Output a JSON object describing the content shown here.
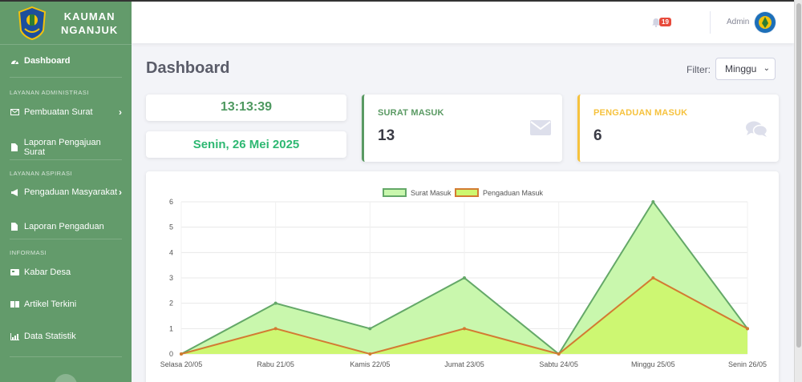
{
  "brand": {
    "line1": "KAUMAN",
    "line2": "NGANJUK"
  },
  "sidebar": {
    "dashboard": "Dashboard",
    "section_admin": "LAYANAN ADMINISTRASI",
    "pembuatan_surat": "Pembuatan Surat",
    "laporan_pengajuan": "Laporan Pengajuan Surat",
    "section_aspirasi": "LAYANAN ASPIRASI",
    "pengaduan_masyarakat": "Pengaduan Masyarakat",
    "laporan_pengaduan": "Laporan Pengaduan",
    "section_informasi": "INFORMASI",
    "kabar_desa": "Kabar Desa",
    "artikel_terkini": "Artikel Terkini",
    "data_statistik": "Data Statistik"
  },
  "topbar": {
    "notif_count": "19",
    "user_name": "Admin"
  },
  "page": {
    "title": "Dashboard",
    "filter_label": "Filter:",
    "filter_value": "Minggu"
  },
  "clock": {
    "time": "13:13:39",
    "date": "Senin, 26 Mei 2025"
  },
  "stats": {
    "surat_label": "SURAT MASUK",
    "surat_value": "13",
    "pengaduan_label": "PENGADUAN MASUK",
    "pengaduan_value": "6"
  },
  "colors": {
    "sidebar": "#639b6b",
    "surat_line": "#64a868",
    "surat_fill": "#c9f7ad",
    "pengaduan_line": "#d37b32",
    "pengaduan_fill": "#cdf76f"
  },
  "chart_data": {
    "type": "area",
    "categories": [
      "Selasa 20/05",
      "Rabu 21/05",
      "Kamis 22/05",
      "Jumat 23/05",
      "Sabtu 24/05",
      "Minggu 25/05",
      "Senin 26/05"
    ],
    "series": [
      {
        "name": "Surat Masuk",
        "values": [
          0,
          2,
          1,
          3,
          0,
          6,
          1
        ]
      },
      {
        "name": "Pengaduan Masuk",
        "values": [
          0,
          1,
          0,
          1,
          0,
          3,
          1
        ]
      }
    ],
    "ylim": [
      0,
      6
    ],
    "yticks": [
      0,
      1,
      2,
      3,
      4,
      5,
      6
    ],
    "grid": true,
    "legend": "top-center"
  }
}
